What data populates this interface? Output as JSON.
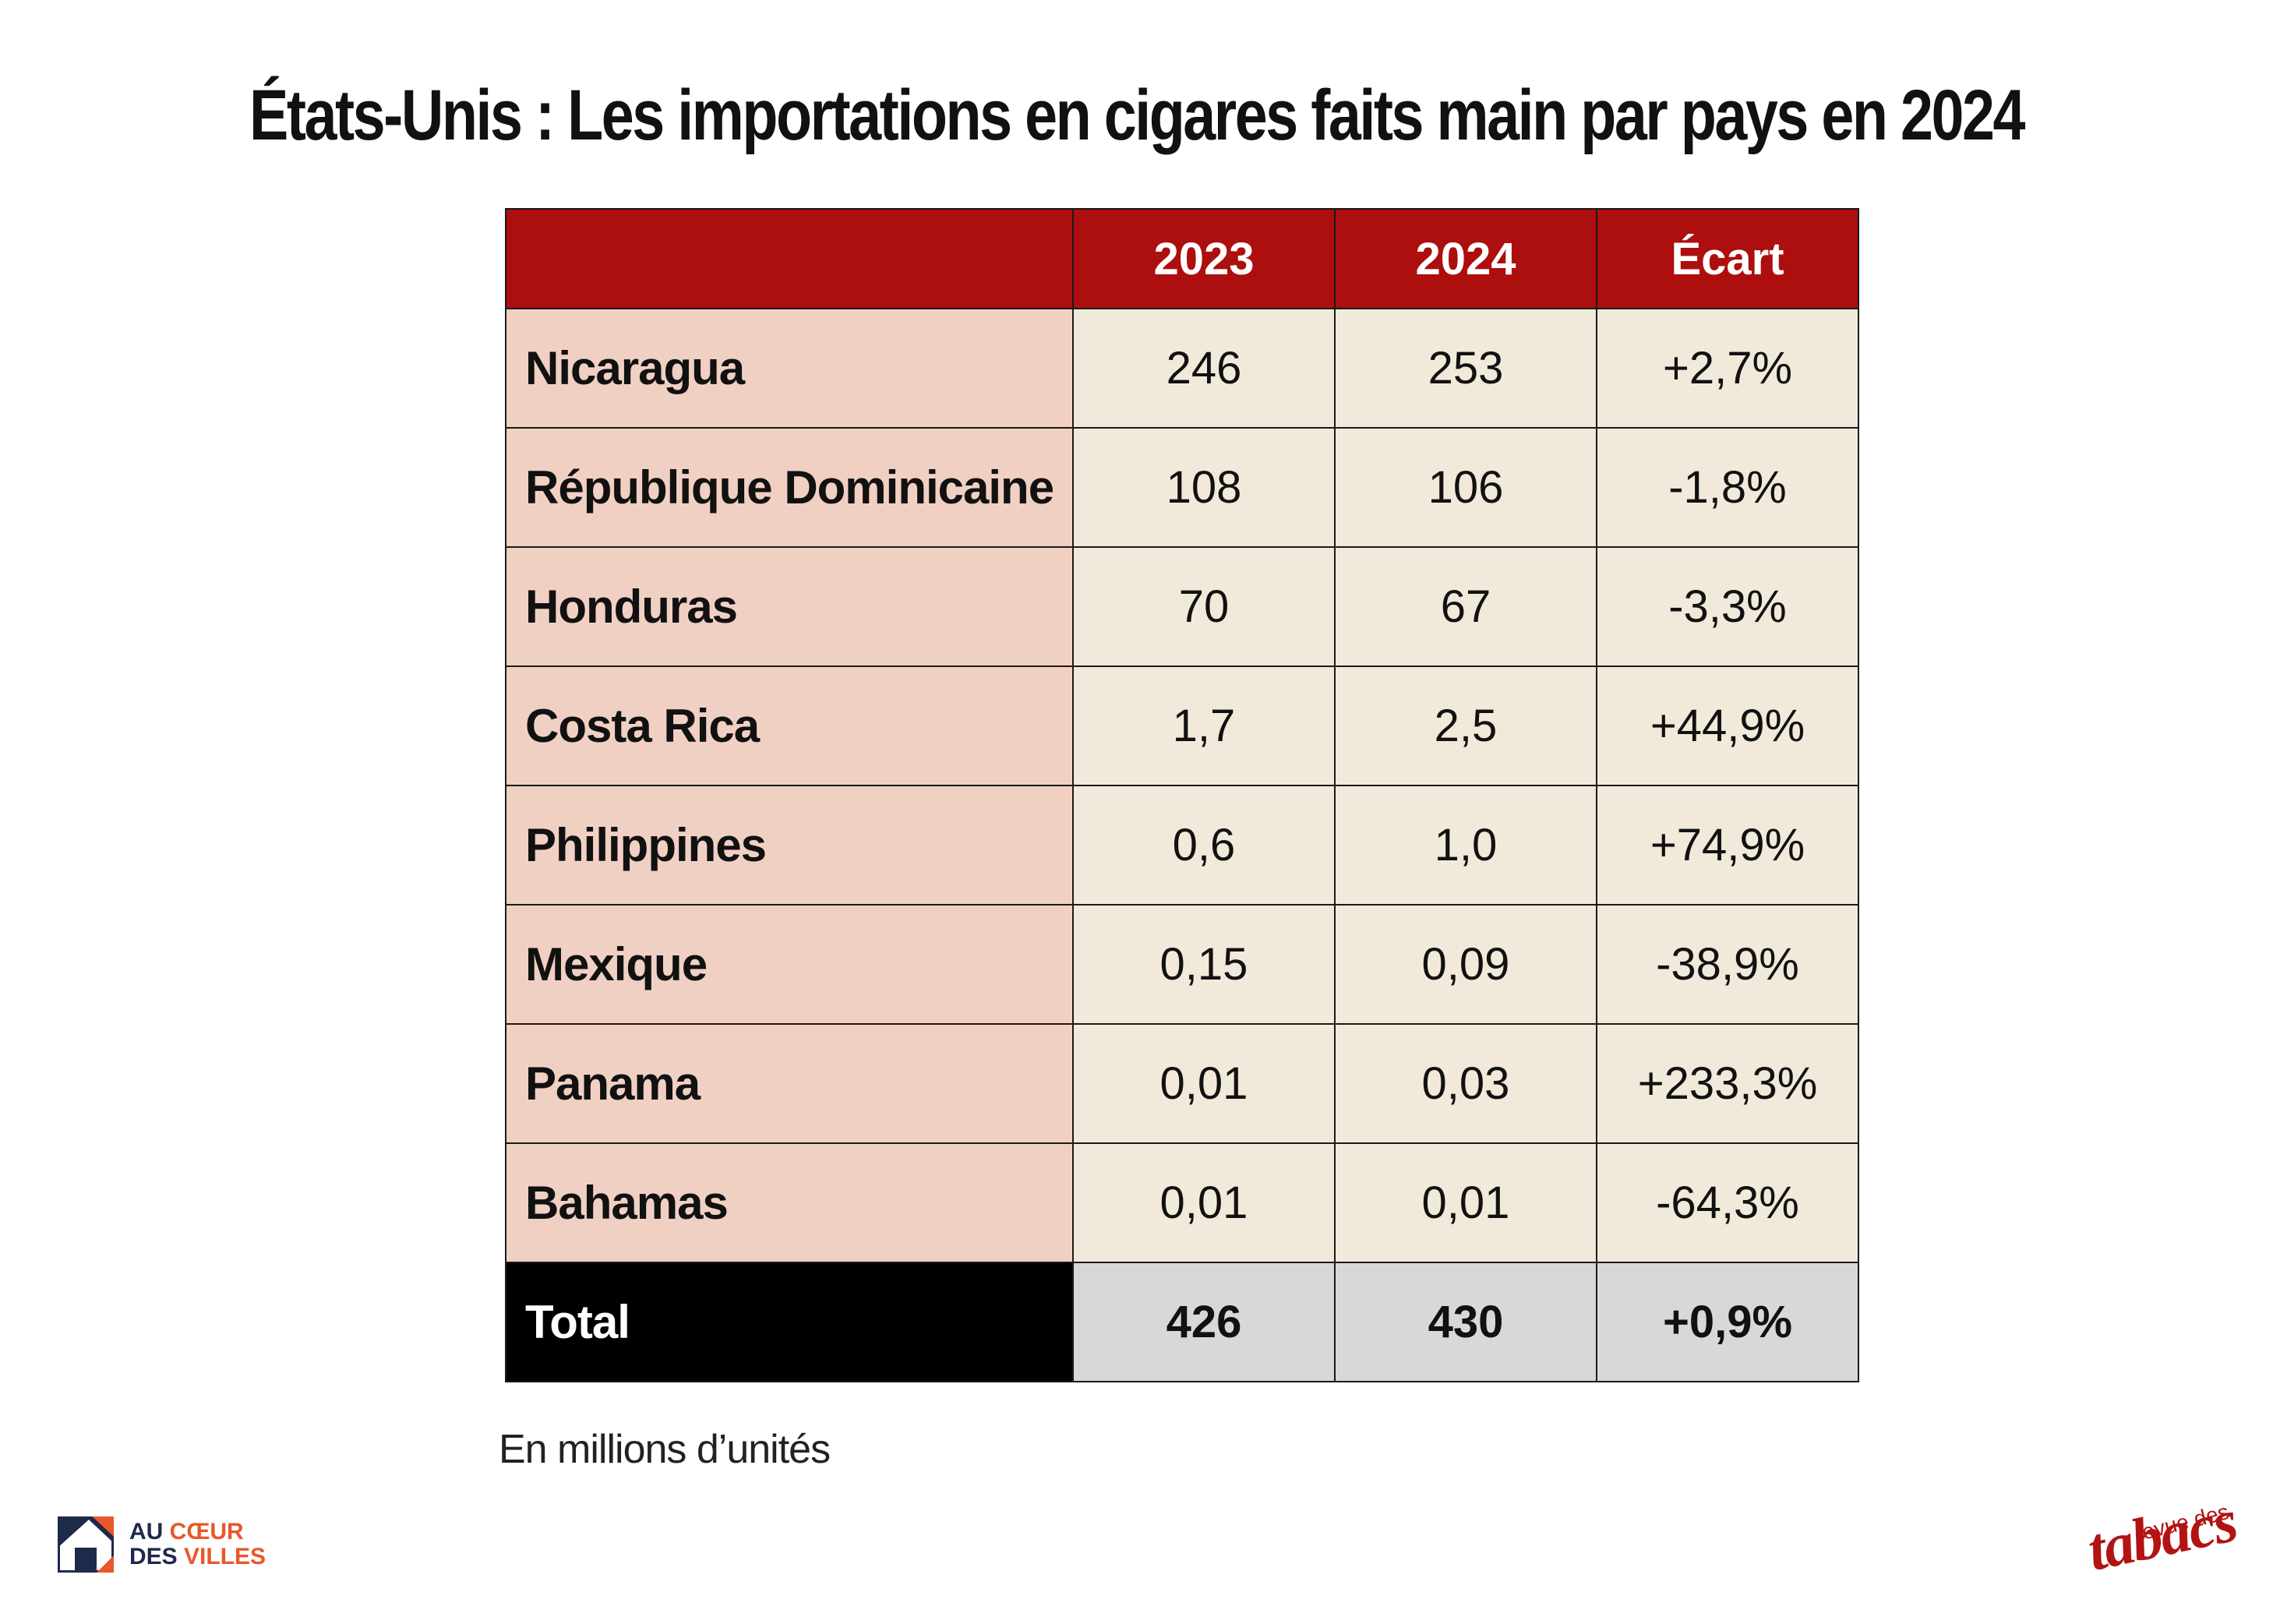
{
  "title": "États-Unis : Les importations en cigares faits main par pays en 2024",
  "footnote": "En millions d’unités",
  "chart_data": {
    "type": "table",
    "columns": [
      "",
      "2023",
      "2024",
      "Écart"
    ],
    "rows": [
      {
        "country": "Nicaragua",
        "v2023": "246",
        "v2024": "253",
        "ecart": "+2,7%"
      },
      {
        "country": "République Dominicaine",
        "v2023": "108",
        "v2024": "106",
        "ecart": "-1,8%"
      },
      {
        "country": "Honduras",
        "v2023": "70",
        "v2024": "67",
        "ecart": "-3,3%"
      },
      {
        "country": "Costa Rica",
        "v2023": "1,7",
        "v2024": "2,5",
        "ecart": "+44,9%"
      },
      {
        "country": "Philippines",
        "v2023": "0,6",
        "v2024": "1,0",
        "ecart": "+74,9%"
      },
      {
        "country": "Mexique",
        "v2023": "0,15",
        "v2024": "0,09",
        "ecart": "-38,9%"
      },
      {
        "country": "Panama",
        "v2023": "0,01",
        "v2024": "0,03",
        "ecart": "+233,3%"
      },
      {
        "country": "Bahamas",
        "v2023": "0,01",
        "v2024": "0,01",
        "ecart": "-64,3%"
      }
    ],
    "total": {
      "country": "Total",
      "v2023": "426",
      "v2024": "430",
      "ecart": "+0,9%"
    }
  },
  "logos": {
    "left_line1_a": "AU ",
    "left_line1_b": "CŒUR",
    "left_line2_a": "DES ",
    "left_line2_b": "VILLES",
    "right_small": "revue des",
    "right_big": "tabacs"
  },
  "colors": {
    "header": "#ad0e0e",
    "country_cell": "#f1d0c4",
    "value_cell": "#f1e9da",
    "total_country": "#000000",
    "total_value": "#d8d8d8",
    "brand_red": "#b31313",
    "brand_navy": "#1e2a4a",
    "brand_orange": "#e8572a"
  }
}
